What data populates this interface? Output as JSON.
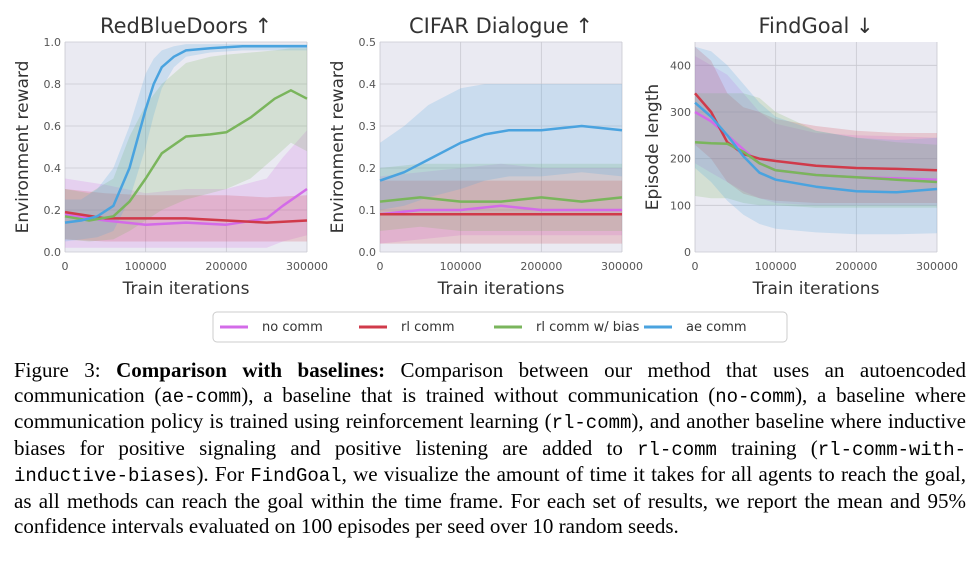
{
  "chart_data": [
    {
      "type": "line",
      "title": "RedBlueDoors ↑",
      "xlabel": "Train iterations",
      "ylabel": "Environment reward",
      "xlim": [
        0,
        300000
      ],
      "ylim": [
        0,
        1.0
      ],
      "xticks": [
        0,
        100000,
        200000,
        300000
      ],
      "xtick_labels": [
        "0",
        "100000",
        "200000",
        "300000"
      ],
      "yticks": [
        0,
        0.2,
        0.4,
        0.6,
        0.8,
        1.0
      ],
      "ytick_labels": [
        "0.0",
        "0.2",
        "0.4",
        "0.6",
        "0.8",
        "1.0"
      ],
      "grid": true,
      "series": [
        {
          "name": "no comm",
          "color": "#d36be8",
          "x": [
            0,
            50000,
            100000,
            150000,
            200000,
            250000,
            270000,
            300000
          ],
          "y": [
            0.18,
            0.15,
            0.13,
            0.14,
            0.13,
            0.16,
            0.22,
            0.3
          ],
          "lower": [
            0.02,
            0.02,
            0.02,
            0.02,
            0.02,
            0.02,
            0.05,
            0.08
          ],
          "upper": [
            0.35,
            0.32,
            0.28,
            0.3,
            0.3,
            0.35,
            0.45,
            0.58
          ]
        },
        {
          "name": "rl comm",
          "color": "#d03a4a",
          "x": [
            0,
            50000,
            100000,
            150000,
            200000,
            250000,
            300000
          ],
          "y": [
            0.19,
            0.16,
            0.16,
            0.16,
            0.15,
            0.14,
            0.15
          ],
          "lower": [
            0.06,
            0.05,
            0.05,
            0.05,
            0.05,
            0.05,
            0.05
          ],
          "upper": [
            0.3,
            0.28,
            0.27,
            0.27,
            0.27,
            0.26,
            0.27
          ]
        },
        {
          "name": "rl comm w/ bias",
          "color": "#7ab55c",
          "x": [
            0,
            30000,
            60000,
            80000,
            100000,
            120000,
            150000,
            180000,
            200000,
            230000,
            260000,
            280000,
            300000
          ],
          "y": [
            0.17,
            0.15,
            0.17,
            0.24,
            0.35,
            0.47,
            0.55,
            0.56,
            0.57,
            0.64,
            0.73,
            0.77,
            0.73
          ],
          "lower": [
            0.06,
            0.05,
            0.06,
            0.1,
            0.15,
            0.2,
            0.25,
            0.28,
            0.3,
            0.35,
            0.45,
            0.52,
            0.48
          ],
          "upper": [
            0.3,
            0.28,
            0.35,
            0.55,
            0.7,
            0.8,
            0.9,
            0.93,
            0.94,
            0.95,
            0.96,
            0.97,
            0.97
          ]
        },
        {
          "name": "ae comm",
          "color": "#4aa3df",
          "x": [
            0,
            20000,
            40000,
            60000,
            80000,
            100000,
            110000,
            120000,
            135000,
            150000,
            180000,
            220000,
            260000,
            300000
          ],
          "y": [
            0.14,
            0.15,
            0.17,
            0.22,
            0.4,
            0.68,
            0.8,
            0.88,
            0.93,
            0.96,
            0.97,
            0.98,
            0.98,
            0.98
          ],
          "lower": [
            0.05,
            0.06,
            0.07,
            0.1,
            0.25,
            0.5,
            0.65,
            0.78,
            0.88,
            0.93,
            0.95,
            0.96,
            0.96,
            0.96
          ],
          "upper": [
            0.25,
            0.25,
            0.3,
            0.4,
            0.6,
            0.85,
            0.92,
            0.96,
            0.98,
            0.99,
            0.99,
            0.99,
            0.99,
            0.99
          ]
        }
      ]
    },
    {
      "type": "line",
      "title": "CIFAR Dialogue ↑",
      "xlabel": "Train iterations",
      "ylabel": "Environment reward",
      "xlim": [
        0,
        300000
      ],
      "ylim": [
        0,
        0.5
      ],
      "xticks": [
        0,
        100000,
        200000,
        300000
      ],
      "xtick_labels": [
        "0",
        "100000",
        "200000",
        "300000"
      ],
      "yticks": [
        0,
        0.1,
        0.2,
        0.3,
        0.4,
        0.5
      ],
      "ytick_labels": [
        "0.0",
        "0.1",
        "0.2",
        "0.3",
        "0.4",
        "0.5"
      ],
      "grid": true,
      "series": [
        {
          "name": "no comm",
          "color": "#d36be8",
          "x": [
            0,
            50000,
            100000,
            150000,
            200000,
            250000,
            300000
          ],
          "y": [
            0.09,
            0.1,
            0.1,
            0.11,
            0.1,
            0.1,
            0.1
          ],
          "lower": [
            0.02,
            0.03,
            0.04,
            0.04,
            0.04,
            0.04,
            0.04
          ],
          "upper": [
            0.18,
            0.19,
            0.2,
            0.21,
            0.2,
            0.2,
            0.2
          ]
        },
        {
          "name": "rl comm",
          "color": "#d03a4a",
          "x": [
            0,
            50000,
            100000,
            150000,
            200000,
            250000,
            300000
          ],
          "y": [
            0.09,
            0.09,
            0.09,
            0.09,
            0.09,
            0.09,
            0.09
          ],
          "lower": [
            0.02,
            0.02,
            0.02,
            0.02,
            0.02,
            0.02,
            0.02
          ],
          "upper": [
            0.17,
            0.17,
            0.17,
            0.17,
            0.17,
            0.17,
            0.17
          ]
        },
        {
          "name": "rl comm w/ bias",
          "color": "#7ab55c",
          "x": [
            0,
            50000,
            100000,
            150000,
            200000,
            250000,
            300000
          ],
          "y": [
            0.12,
            0.13,
            0.12,
            0.12,
            0.13,
            0.12,
            0.13
          ],
          "lower": [
            0.05,
            0.06,
            0.05,
            0.05,
            0.05,
            0.05,
            0.05
          ],
          "upper": [
            0.2,
            0.21,
            0.21,
            0.21,
            0.21,
            0.21,
            0.21
          ]
        },
        {
          "name": "ae comm",
          "color": "#4aa3df",
          "x": [
            0,
            30000,
            60000,
            100000,
            130000,
            160000,
            200000,
            250000,
            300000
          ],
          "y": [
            0.17,
            0.19,
            0.22,
            0.26,
            0.28,
            0.29,
            0.29,
            0.3,
            0.29
          ],
          "lower": [
            0.1,
            0.11,
            0.13,
            0.15,
            0.17,
            0.18,
            0.18,
            0.19,
            0.18
          ],
          "upper": [
            0.26,
            0.3,
            0.35,
            0.39,
            0.4,
            0.4,
            0.4,
            0.4,
            0.4
          ]
        }
      ]
    },
    {
      "type": "line",
      "title": "FindGoal ↓",
      "xlabel": "Train iterations",
      "ylabel": "Episode length",
      "xlim": [
        0,
        300000
      ],
      "ylim": [
        0,
        450
      ],
      "xticks": [
        0,
        100000,
        200000,
        300000
      ],
      "xtick_labels": [
        "0",
        "100000",
        "200000",
        "300000"
      ],
      "yticks": [
        0,
        100,
        200,
        300,
        400
      ],
      "ytick_labels": [
        "0",
        "100",
        "200",
        "300",
        "400"
      ],
      "grid": true,
      "series": [
        {
          "name": "no comm",
          "color": "#d36be8",
          "x": [
            0,
            20000,
            40000,
            60000,
            80000,
            100000,
            150000,
            200000,
            250000,
            300000
          ],
          "y": [
            300,
            280,
            250,
            220,
            190,
            175,
            165,
            160,
            158,
            155
          ],
          "lower": [
            190,
            170,
            150,
            130,
            115,
            105,
            100,
            100,
            100,
            100
          ],
          "upper": [
            420,
            400,
            380,
            340,
            300,
            275,
            255,
            250,
            248,
            245
          ]
        },
        {
          "name": "rl comm",
          "color": "#d03a4a",
          "x": [
            0,
            20000,
            40000,
            60000,
            80000,
            100000,
            150000,
            200000,
            250000,
            300000
          ],
          "y": [
            340,
            300,
            235,
            210,
            200,
            195,
            185,
            180,
            178,
            175
          ],
          "lower": [
            230,
            200,
            150,
            125,
            115,
            110,
            105,
            105,
            105,
            105
          ],
          "upper": [
            440,
            410,
            340,
            310,
            300,
            285,
            270,
            260,
            255,
            255
          ]
        },
        {
          "name": "rl comm w/ bias",
          "color": "#7ab55c",
          "x": [
            0,
            20000,
            40000,
            60000,
            80000,
            100000,
            150000,
            200000,
            250000,
            300000
          ],
          "y": [
            235,
            233,
            232,
            215,
            190,
            175,
            165,
            160,
            155,
            150
          ],
          "lower": [
            120,
            115,
            115,
            105,
            100,
            100,
            95,
            95,
            95,
            95
          ],
          "upper": [
            340,
            340,
            340,
            340,
            330,
            300,
            260,
            245,
            235,
            230
          ]
        },
        {
          "name": "ae comm",
          "color": "#4aa3df",
          "x": [
            0,
            20000,
            40000,
            60000,
            80000,
            100000,
            150000,
            200000,
            250000,
            300000
          ],
          "y": [
            320,
            290,
            250,
            205,
            170,
            155,
            140,
            130,
            128,
            135
          ],
          "lower": [
            180,
            150,
            110,
            80,
            60,
            50,
            42,
            38,
            38,
            40
          ],
          "upper": [
            440,
            430,
            400,
            360,
            320,
            290,
            260,
            245,
            240,
            245
          ]
        }
      ]
    }
  ],
  "legend": [
    {
      "label": "no comm",
      "color": "#d36be8"
    },
    {
      "label": "rl comm",
      "color": "#d03a4a"
    },
    {
      "label": "rl comm w/ bias",
      "color": "#7ab55c"
    },
    {
      "label": "ae comm",
      "color": "#4aa3df"
    }
  ],
  "caption": {
    "figure_label": "Figure 3:",
    "bold_title": "Comparison with baselines:",
    "t1": " Comparison between our method that uses an autoencoded communication (",
    "c1": "ae-comm",
    "t2": "), a baseline that is trained without communication (",
    "c2": "no-comm",
    "t3": "), a baseline where communication policy is trained using reinforcement learning (",
    "c3": "rl-comm",
    "t4": "), and another baseline where inductive biases for positive signaling and positive listening are added to ",
    "c4": "rl-comm",
    "t5": " training (",
    "c5": "rl-comm-with-inductive-biases",
    "t6": "). For ",
    "c6": "FindGoal",
    "t7": ", we visualize the amount of time it takes for all agents to reach the goal, as all methods can reach the goal within the time frame. For each set of results, we report the mean and 95% confidence intervals evaluated on 100 episodes per seed over 10 random seeds."
  }
}
